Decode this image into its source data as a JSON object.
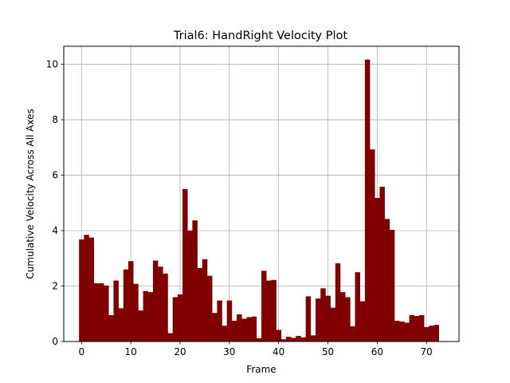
{
  "chart_data": {
    "type": "bar",
    "title": "Trial6: HandRight Velocity Plot",
    "xlabel": "Frame",
    "ylabel": "Cumulative Velocity Across All Axes",
    "xlim": [
      -3.6,
      76.6
    ],
    "ylim": [
      0,
      10.65
    ],
    "xticks": [
      0,
      10,
      20,
      30,
      40,
      50,
      60,
      70
    ],
    "yticks": [
      0,
      2,
      4,
      6,
      8,
      10
    ],
    "grid": true,
    "bar_color": "#800000",
    "x": [
      0,
      1,
      2,
      3,
      4,
      5,
      6,
      7,
      8,
      9,
      10,
      11,
      12,
      13,
      14,
      15,
      16,
      17,
      18,
      19,
      20,
      21,
      22,
      23,
      24,
      25,
      26,
      27,
      28,
      29,
      30,
      31,
      32,
      33,
      34,
      35,
      36,
      37,
      38,
      39,
      40,
      41,
      42,
      43,
      44,
      45,
      46,
      47,
      48,
      49,
      50,
      51,
      52,
      53,
      54,
      55,
      56,
      57,
      58,
      59,
      60,
      61,
      62,
      63,
      64,
      65,
      66,
      67,
      68,
      69,
      70,
      71,
      72
    ],
    "values": [
      3.68,
      3.85,
      3.75,
      2.1,
      2.1,
      2.02,
      0.95,
      2.2,
      1.2,
      2.6,
      2.9,
      2.08,
      1.12,
      1.82,
      1.78,
      2.92,
      2.7,
      2.45,
      0.3,
      1.6,
      1.7,
      5.5,
      4.0,
      4.37,
      2.65,
      2.97,
      2.37,
      1.03,
      1.48,
      0.57,
      1.48,
      0.75,
      0.98,
      0.82,
      0.88,
      0.9,
      0.12,
      2.55,
      2.2,
      2.22,
      0.42,
      0.08,
      0.17,
      0.13,
      0.2,
      0.15,
      1.63,
      0.22,
      1.55,
      1.92,
      1.65,
      1.22,
      2.82,
      1.78,
      1.6,
      0.55,
      2.5,
      1.45,
      10.17,
      6.93,
      5.18,
      5.58,
      4.42,
      4.03,
      0.75,
      0.72,
      0.68,
      0.95,
      0.92,
      0.95,
      0.52,
      0.57,
      0.6
    ]
  }
}
